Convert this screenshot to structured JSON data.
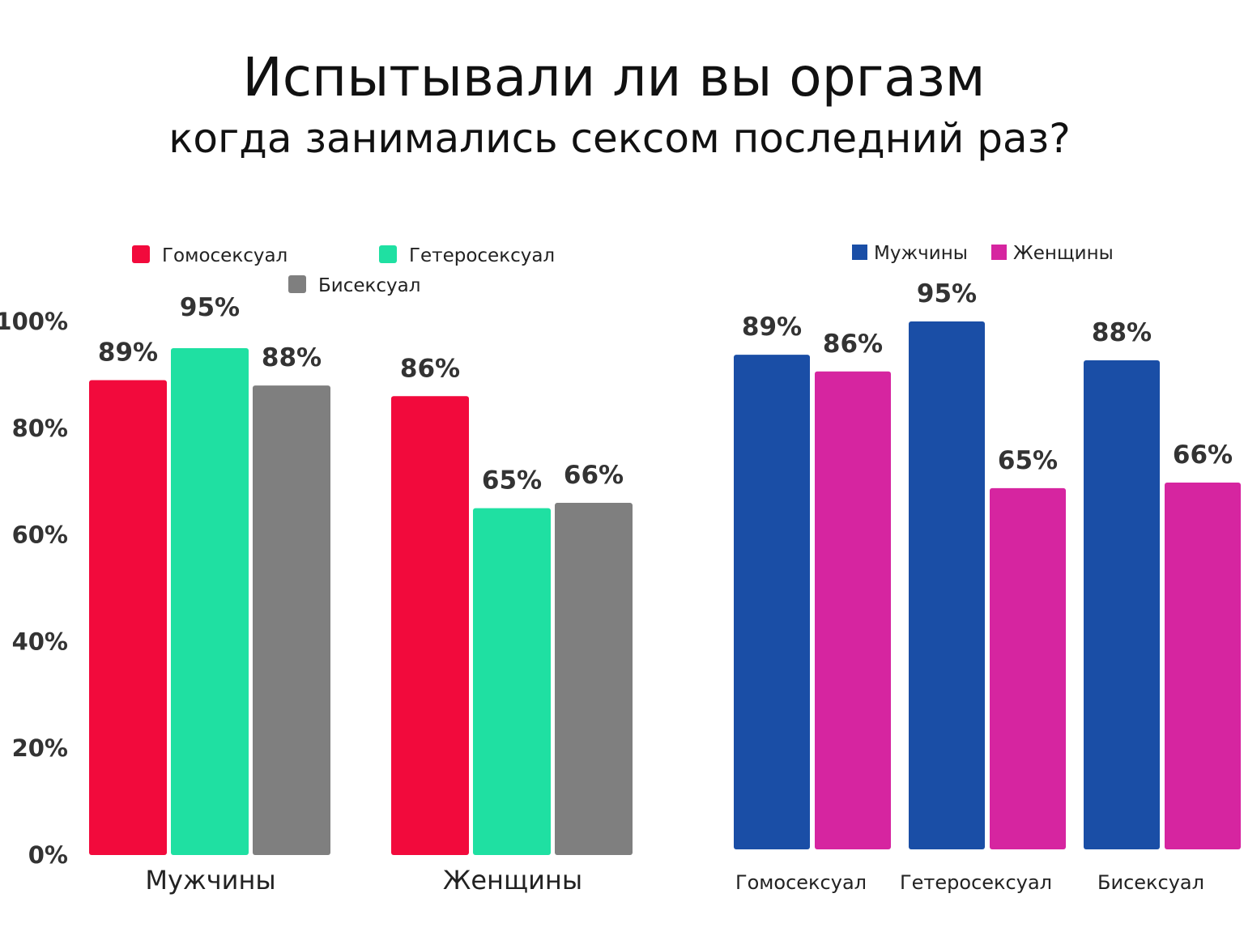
{
  "title_line1": "Испытывали ли вы оргазм",
  "title_line2": "когда занимались сексом последний раз?",
  "chart_data": [
    {
      "type": "bar",
      "title": "",
      "categories": [
        "Мужчины",
        "Женщины"
      ],
      "series": [
        {
          "name": "Гомосексуал",
          "color": "#F20A3C",
          "values": [
            89,
            86
          ]
        },
        {
          "name": "Гетеросексуал",
          "color": "#1FE0A2",
          "values": [
            95,
            65
          ]
        },
        {
          "name": "Бисексуал",
          "color": "#7F7F7F",
          "values": [
            88,
            66
          ]
        }
      ],
      "yticks": [
        "0%",
        "20%",
        "40%",
        "60%",
        "80%",
        "100%"
      ],
      "ylim": [
        0,
        100
      ],
      "xlabel": "",
      "ylabel": "",
      "legend": "top",
      "grid": false
    },
    {
      "type": "bar",
      "title": "",
      "categories": [
        "Гомосексуал",
        "Гетеросексуал",
        "Бисексуал"
      ],
      "series": [
        {
          "name": "Мужчины",
          "color": "#1A4EA6",
          "values": [
            89,
            95,
            88
          ]
        },
        {
          "name": "Женщины",
          "color": "#D625A0",
          "values": [
            86,
            65,
            66
          ]
        }
      ],
      "ylim": [
        0,
        95
      ],
      "xlabel": "",
      "ylabel": "",
      "legend": "top",
      "grid": false
    }
  ]
}
